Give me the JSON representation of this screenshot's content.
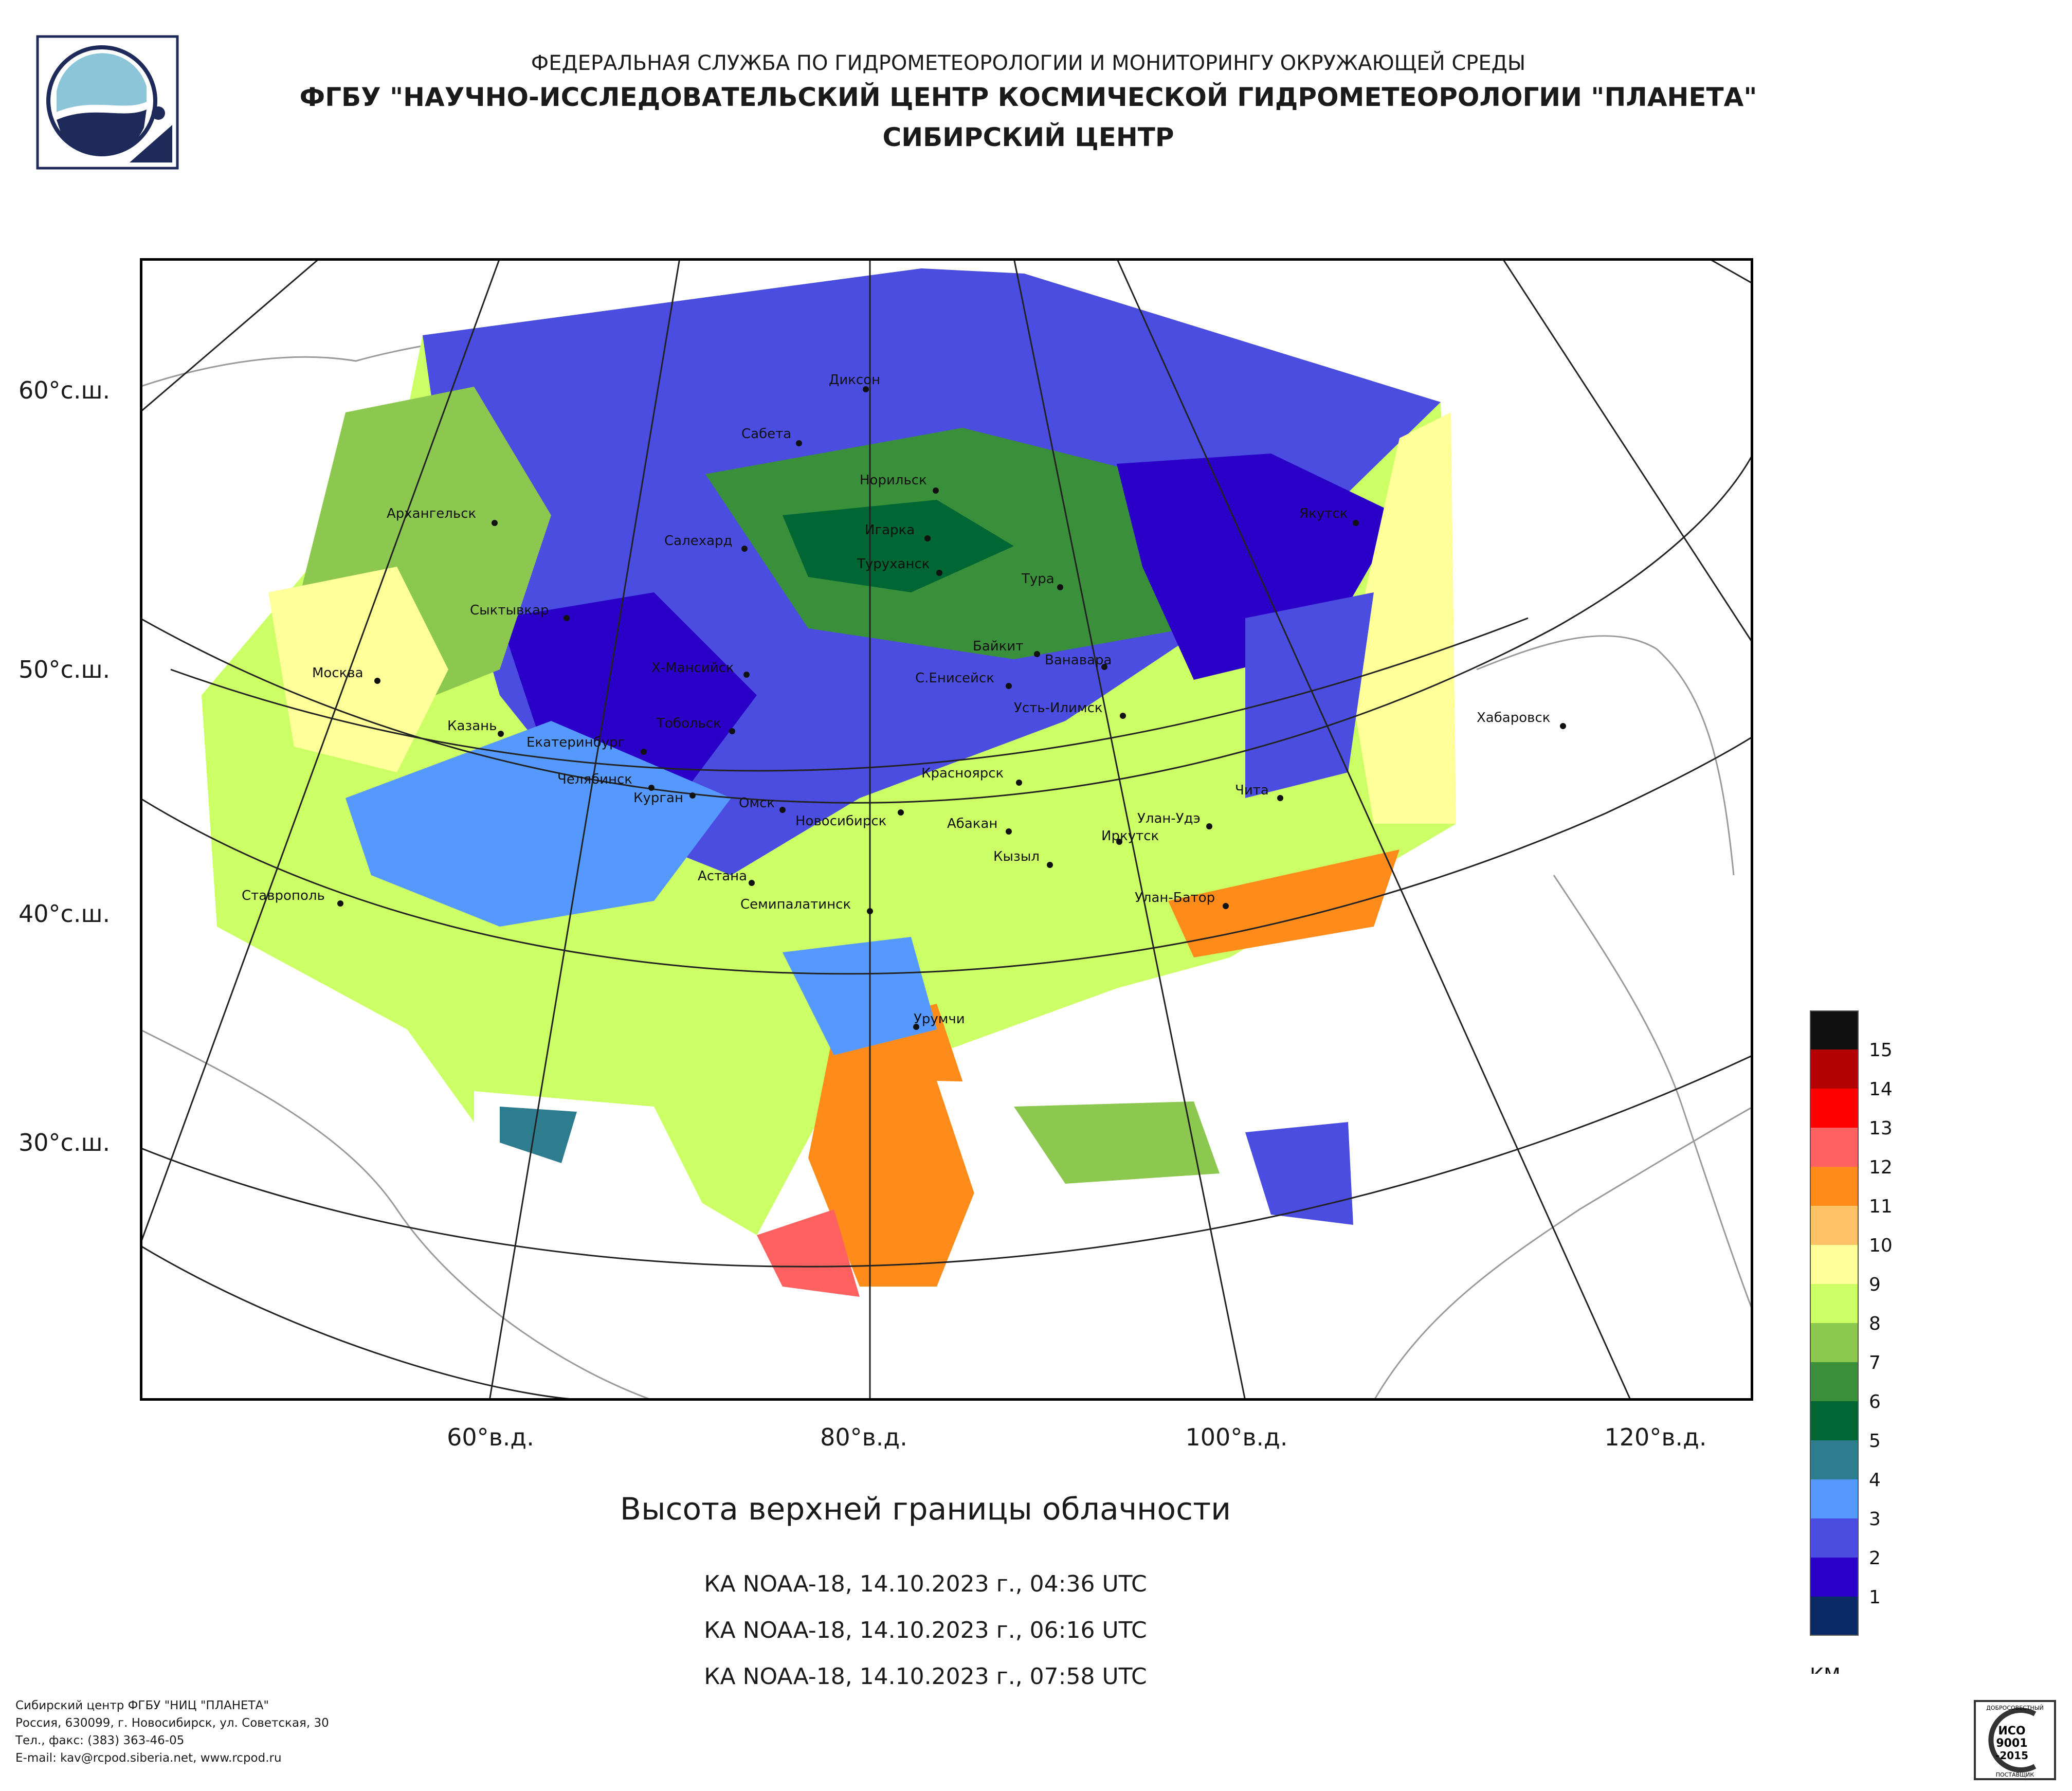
{
  "header": {
    "agency": "ФЕДЕРАЛЬНАЯ СЛУЖБА ПО ГИДРОМЕТЕОРОЛОГИИ И МОНИТОРИНГУ ОКРУЖАЮЩЕЙ СРЕДЫ",
    "institute": "ФГБУ \"НАУЧНО-ИССЛЕДОВАТЕЛЬСКИЙ ЦЕНТР КОСМИЧЕСКОЙ ГИДРОМЕТЕОРОЛОГИИ \"ПЛАНЕТА\"",
    "center": "СИБИРСКИЙ ЦЕНТР"
  },
  "map": {
    "latitude_labels": [
      "60°с.ш.",
      "50°с.ш.",
      "40°с.ш.",
      "30°с.ш."
    ],
    "longitude_labels": [
      "60°в.д.",
      "80°в.д.",
      "100°в.д.",
      "120°в.д."
    ],
    "cities": [
      "Диксон",
      "Сабета",
      "Норильск",
      "Архангельск",
      "Салехард",
      "Игарка",
      "Туруханск",
      "Тура",
      "Якутск",
      "Сыктывкар",
      "Байкит",
      "Ванавара",
      "Москва",
      "Х-Мансийск",
      "С.Енисейск",
      "Усть-Илимск",
      "Хабаровск",
      "Казань",
      "Тобольск",
      "Екатеринбург",
      "Челябинск",
      "Красноярск",
      "Курган",
      "Чита",
      "Омск",
      "Новосибирск",
      "Абакан",
      "Улан-Удэ",
      "Иркутск",
      "Кызыл",
      "Астана",
      "Ставрополь",
      "Улан-Батор",
      "Семипалатинск",
      "Урумчи"
    ]
  },
  "legend": {
    "unit": "КМ",
    "levels": [
      "15",
      "14",
      "13",
      "12",
      "11",
      "10",
      "9",
      "8",
      "7",
      "6",
      "5",
      "4",
      "3",
      "2",
      "1"
    ],
    "colors": [
      "#111111",
      "#b30000",
      "#ff0000",
      "#ff6060",
      "#ff8c1a",
      "#ffc266",
      "#ffff99",
      "#ccff66",
      "#8cc850",
      "#3a8f3a",
      "#006633",
      "#2e7d8f",
      "#5599ff",
      "#4a4de0",
      "#2a00c8",
      "#0a2a66"
    ]
  },
  "title": "Высота верхней границы облачности",
  "passes": [
    "КА NOAA-18, 14.10.2023 г., 04:36 UTC",
    "КА NOAA-18, 14.10.2023 г., 06:16 UTC",
    "КА NOAA-18, 14.10.2023 г., 07:58 UTC"
  ],
  "footer": {
    "line1": "Сибирский центр ФГБУ \"НИЦ \"ПЛАНЕТА\"",
    "line2": "Россия, 630099, г. Новосибирск, ул. Советская, 30",
    "line3": "Тел., факс: (383) 363-46-05",
    "line4": "E-mail: kav@rcpod.siberia.net, www.rcpod.ru"
  },
  "iso_badge": {
    "top": "ДОБРОСОВЕСТНЫЙ",
    "l1": "ИСО",
    "l2": "9001",
    "l3": "-2015",
    "bottom": "ПОСТАВЩИК"
  }
}
